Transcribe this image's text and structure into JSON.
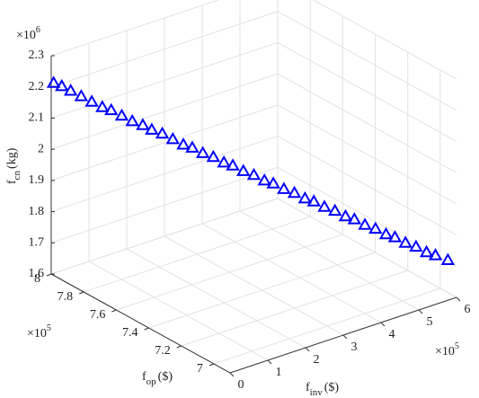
{
  "chart_data": {
    "type": "scatter3d",
    "color": "#0000ff",
    "xlabel": {
      "main": "f",
      "sub": "inv",
      "unit": "($)"
    },
    "ylabel": {
      "main": "f",
      "sub": "op",
      "unit": "($)"
    },
    "zlabel": {
      "main": "f",
      "sub": "cn",
      "unit": "(kg)"
    },
    "xexponent": {
      "base": "×10",
      "power": "5"
    },
    "yexponent": {
      "base": "×10",
      "power": "5"
    },
    "zexponent": {
      "base": "×10",
      "power": "6"
    },
    "xlim": [
      0,
      6
    ],
    "ylim": [
      6.9,
      8
    ],
    "zlim": [
      1.6,
      2.3
    ],
    "xticks": [
      0,
      1,
      2,
      3,
      4,
      5,
      6
    ],
    "yticks": [
      7,
      7.2,
      7.4,
      7.6,
      7.8,
      8
    ],
    "zticks": [
      1.6,
      1.7,
      1.8,
      1.9,
      2,
      2.1,
      2.2,
      2.3
    ],
    "grid": true,
    "x": [
      0.02,
      0.15,
      0.3,
      0.45,
      0.6,
      0.75,
      0.9,
      1.05,
      1.2,
      1.35,
      1.5,
      1.65,
      1.8,
      1.95,
      2.1,
      2.25,
      2.4,
      2.55,
      2.7,
      2.85,
      3.0,
      3.15,
      3.3,
      3.45,
      3.6,
      3.75,
      3.9,
      4.05,
      4.2,
      4.35,
      4.5,
      4.65,
      4.8,
      4.95,
      5.1,
      5.25,
      5.4,
      5.55,
      5.7,
      5.9
    ],
    "y": [
      7.99,
      7.97,
      7.95,
      7.92,
      7.89,
      7.86,
      7.84,
      7.81,
      7.78,
      7.75,
      7.73,
      7.7,
      7.67,
      7.64,
      7.62,
      7.59,
      7.56,
      7.53,
      7.51,
      7.48,
      7.45,
      7.42,
      7.4,
      7.37,
      7.34,
      7.31,
      7.29,
      7.26,
      7.23,
      7.2,
      7.18,
      7.15,
      7.12,
      7.09,
      7.07,
      7.04,
      7.01,
      6.98,
      6.96,
      6.93
    ],
    "z": [
      2.215,
      2.205,
      2.19,
      2.175,
      2.16,
      2.145,
      2.135,
      2.12,
      2.105,
      2.095,
      2.08,
      2.07,
      2.055,
      2.04,
      2.03,
      2.015,
      2.005,
      1.99,
      1.98,
      1.965,
      1.955,
      1.94,
      1.93,
      1.915,
      1.905,
      1.89,
      1.88,
      1.865,
      1.855,
      1.84,
      1.83,
      1.815,
      1.805,
      1.79,
      1.78,
      1.765,
      1.755,
      1.74,
      1.73,
      1.715
    ]
  }
}
